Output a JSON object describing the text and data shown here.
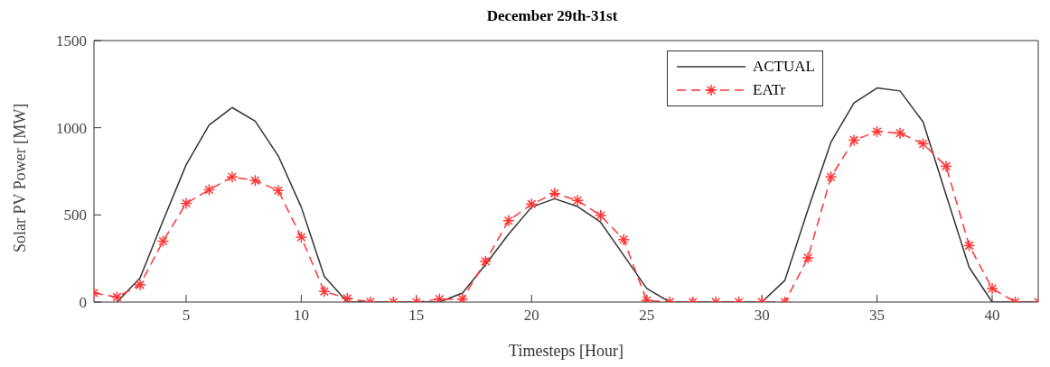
{
  "chart_data": {
    "type": "line",
    "title": "December 29th-31st",
    "xlabel": "Timesteps [Hour]",
    "ylabel": "Solar PV Power [MW]",
    "x": [
      1,
      2,
      3,
      4,
      5,
      6,
      7,
      8,
      9,
      10,
      11,
      12,
      13,
      14,
      15,
      16,
      17,
      18,
      19,
      20,
      21,
      22,
      23,
      24,
      25,
      26,
      27,
      28,
      29,
      30,
      31,
      32,
      33,
      34,
      35,
      36,
      37,
      38,
      39,
      40,
      41,
      42
    ],
    "series": [
      {
        "name": "ACTUAL",
        "color": "#333333",
        "marker": "none",
        "line_style": "solid",
        "values": [
          null,
          0,
          138,
          467,
          787,
          1016,
          1116,
          1038,
          839,
          545,
          147,
          0,
          0,
          0,
          0,
          0,
          52,
          215,
          389,
          545,
          593,
          548,
          458,
          268,
          78,
          0,
          0,
          0,
          0,
          0,
          125,
          530,
          917,
          1142,
          1228,
          1211,
          1033,
          614,
          199,
          0,
          0,
          0
        ]
      },
      {
        "name": "EATr",
        "color": "#ff3333",
        "marker": "cross",
        "line_style": "dashed",
        "values": [
          52,
          29,
          99,
          349,
          566,
          644,
          718,
          697,
          640,
          372,
          61,
          21,
          0,
          0,
          0,
          17,
          17,
          234,
          467,
          562,
          623,
          583,
          497,
          358,
          9,
          0,
          0,
          0,
          0,
          0,
          0,
          254,
          718,
          929,
          978,
          969,
          908,
          779,
          324,
          78,
          0,
          0
        ]
      }
    ],
    "xlim": [
      1,
      42
    ],
    "xticks": [
      5,
      10,
      15,
      20,
      25,
      30,
      35,
      40
    ],
    "ylim": [
      0,
      1500
    ],
    "yticks": [
      0,
      500,
      1000,
      1500
    ],
    "grid": false,
    "legend": "top right"
  }
}
